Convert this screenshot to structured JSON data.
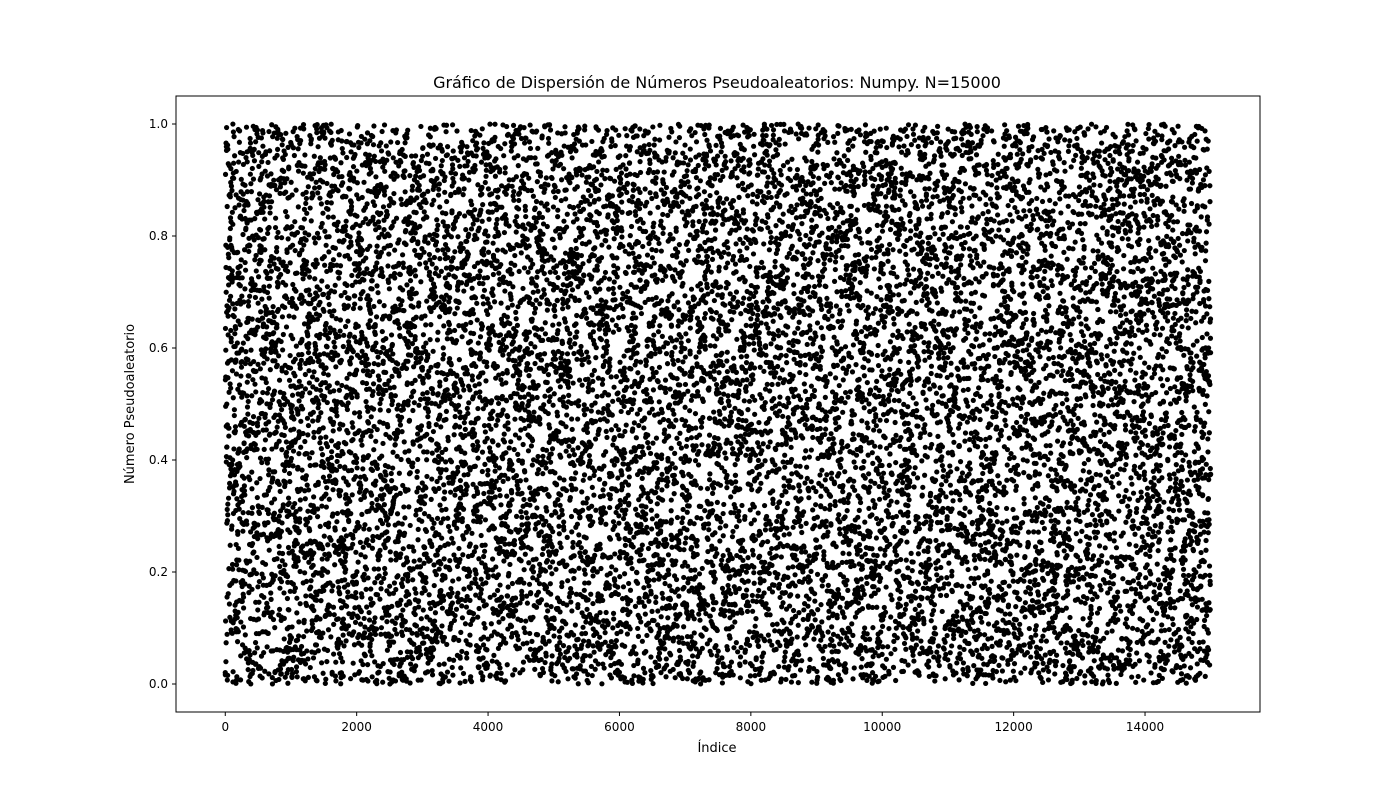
{
  "chart_data": {
    "type": "scatter",
    "title": "Gráfico de Dispersión de Números Pseudoaleatorios: Numpy. N=15000",
    "xlabel": "Índice",
    "ylabel": "Número Pseudoaleatorio",
    "n_points": 15000,
    "distribution": "uniform",
    "x_range": [
      0,
      14999
    ],
    "y_range": [
      0,
      1
    ],
    "xlim": [
      -750,
      15750
    ],
    "ylim": [
      -0.05,
      1.05
    ],
    "x_ticks": [
      0,
      2000,
      4000,
      6000,
      8000,
      10000,
      12000,
      14000
    ],
    "y_ticks": [
      0.0,
      0.2,
      0.4,
      0.6,
      0.8,
      1.0
    ],
    "x_tick_labels": [
      "0",
      "2000",
      "4000",
      "6000",
      "8000",
      "10000",
      "12000",
      "14000"
    ],
    "y_tick_labels": [
      "0.0",
      "0.2",
      "0.4",
      "0.6",
      "0.8",
      "1.0"
    ],
    "marker_color": "#000000",
    "grid": false,
    "legend": "none"
  }
}
